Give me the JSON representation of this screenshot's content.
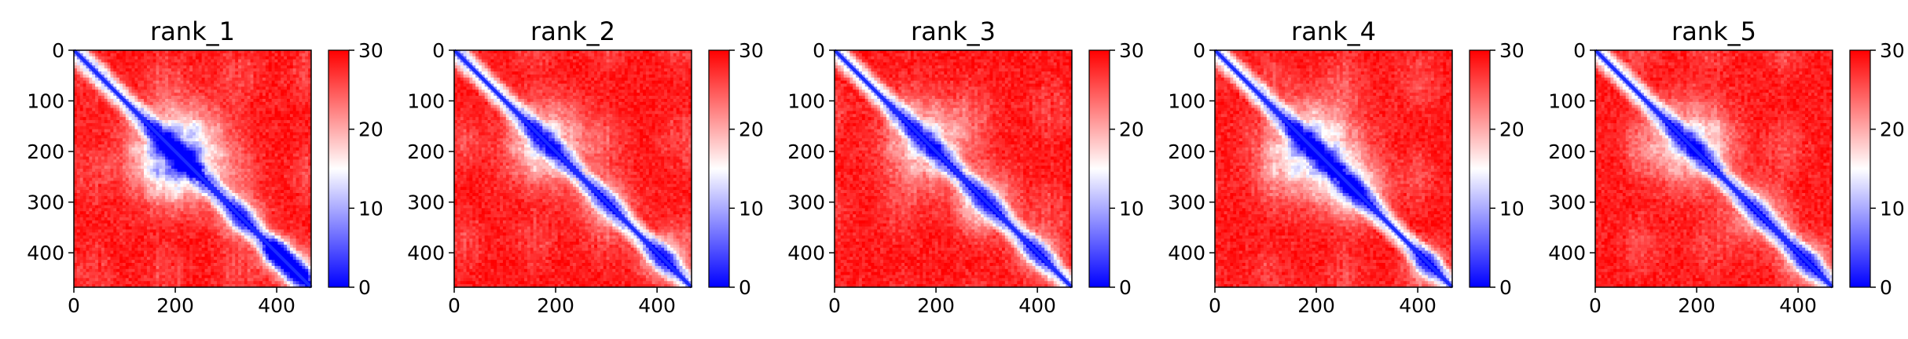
{
  "chart_data": [
    {
      "type": "heatmap",
      "title": "rank_1",
      "xlim": [
        0,
        468
      ],
      "ylim": [
        468,
        0
      ],
      "xticks": [
        0,
        200,
        400
      ],
      "yticks": [
        0,
        100,
        200,
        300,
        400
      ],
      "colorbar": {
        "range": [
          0,
          30
        ],
        "ticks": [
          0,
          10,
          20,
          30
        ],
        "colors": [
          "#0000ff",
          "#ffffff",
          "#ff0000"
        ]
      },
      "blobs": [
        {
          "cx": 205,
          "cy": 205,
          "r": 60,
          "strength": 0.95,
          "grid": true
        },
        {
          "cx": 400,
          "cy": 400,
          "r": 22,
          "strength": 0.8,
          "grid": false
        },
        {
          "cx": 330,
          "cy": 330,
          "r": 30,
          "strength": 0.45,
          "grid": false
        },
        {
          "cx": 440,
          "cy": 440,
          "r": 25,
          "strength": 0.6,
          "grid": false
        }
      ]
    },
    {
      "type": "heatmap",
      "title": "rank_2",
      "xlim": [
        0,
        468
      ],
      "ylim": [
        468,
        0
      ],
      "xticks": [
        0,
        200,
        400
      ],
      "yticks": [
        0,
        100,
        200,
        300,
        400
      ],
      "colorbar": {
        "range": [
          0,
          30
        ],
        "ticks": [
          0,
          10,
          20,
          30
        ],
        "colors": [
          "#0000ff",
          "#ffffff",
          "#ff0000"
        ]
      },
      "blobs": [
        {
          "cx": 185,
          "cy": 185,
          "r": 55,
          "strength": 0.55,
          "grid": true
        },
        {
          "cx": 300,
          "cy": 300,
          "r": 35,
          "strength": 0.35,
          "grid": false
        },
        {
          "cx": 410,
          "cy": 410,
          "r": 30,
          "strength": 0.45,
          "grid": false
        }
      ]
    },
    {
      "type": "heatmap",
      "title": "rank_3",
      "xlim": [
        0,
        468
      ],
      "ylim": [
        468,
        0
      ],
      "xticks": [
        0,
        200,
        400
      ],
      "yticks": [
        0,
        100,
        200,
        300,
        400
      ],
      "colorbar": {
        "range": [
          0,
          30
        ],
        "ticks": [
          0,
          10,
          20,
          30
        ],
        "colors": [
          "#0000ff",
          "#ffffff",
          "#ff0000"
        ]
      },
      "blobs": [
        {
          "cx": 185,
          "cy": 185,
          "r": 55,
          "strength": 0.6,
          "grid": true
        },
        {
          "cx": 300,
          "cy": 300,
          "r": 40,
          "strength": 0.4,
          "grid": false
        },
        {
          "cx": 400,
          "cy": 400,
          "r": 30,
          "strength": 0.4,
          "grid": false
        }
      ]
    },
    {
      "type": "heatmap",
      "title": "rank_4",
      "xlim": [
        0,
        468
      ],
      "ylim": [
        468,
        0
      ],
      "xticks": [
        0,
        200,
        400
      ],
      "yticks": [
        0,
        100,
        200,
        300,
        400
      ],
      "colorbar": {
        "range": [
          0,
          30
        ],
        "ticks": [
          0,
          10,
          20,
          30
        ],
        "colors": [
          "#0000ff",
          "#ffffff",
          "#ff0000"
        ]
      },
      "blobs": [
        {
          "cx": 190,
          "cy": 195,
          "r": 60,
          "strength": 0.8,
          "grid": true
        },
        {
          "cx": 280,
          "cy": 280,
          "r": 40,
          "strength": 0.45,
          "grid": false
        },
        {
          "cx": 420,
          "cy": 420,
          "r": 25,
          "strength": 0.4,
          "grid": false
        }
      ]
    },
    {
      "type": "heatmap",
      "title": "rank_5",
      "xlim": [
        0,
        468
      ],
      "ylim": [
        468,
        0
      ],
      "xticks": [
        0,
        200,
        400
      ],
      "yticks": [
        0,
        100,
        200,
        300,
        400
      ],
      "colorbar": {
        "range": [
          0,
          30
        ],
        "ticks": [
          0,
          10,
          20,
          30
        ],
        "colors": [
          "#0000ff",
          "#ffffff",
          "#ff0000"
        ]
      },
      "blobs": [
        {
          "cx": 185,
          "cy": 185,
          "r": 55,
          "strength": 0.6,
          "grid": true
        },
        {
          "cx": 320,
          "cy": 320,
          "r": 40,
          "strength": 0.35,
          "grid": false
        },
        {
          "cx": 420,
          "cy": 420,
          "r": 30,
          "strength": 0.45,
          "grid": false
        }
      ]
    }
  ]
}
